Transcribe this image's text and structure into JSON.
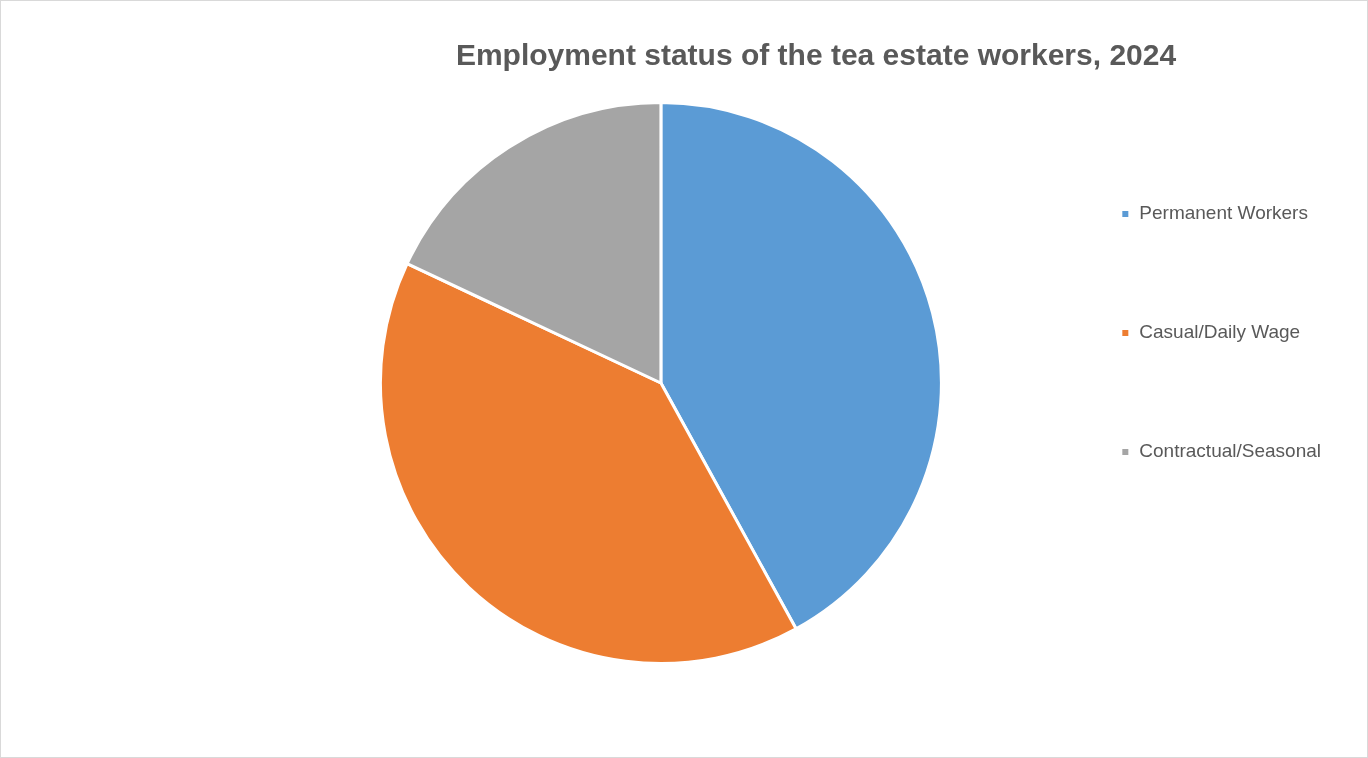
{
  "chart_data": {
    "type": "pie",
    "title": "Employment status of the tea estate workers, 2024",
    "categories": [
      "Permanent Workers",
      "Casual/Daily Wage",
      "Contractual/Seasonal"
    ],
    "values": [
      42,
      40,
      18
    ],
    "colors": [
      "#5b9bd5",
      "#ed7d31",
      "#a5a5a5"
    ],
    "legend": "right"
  }
}
